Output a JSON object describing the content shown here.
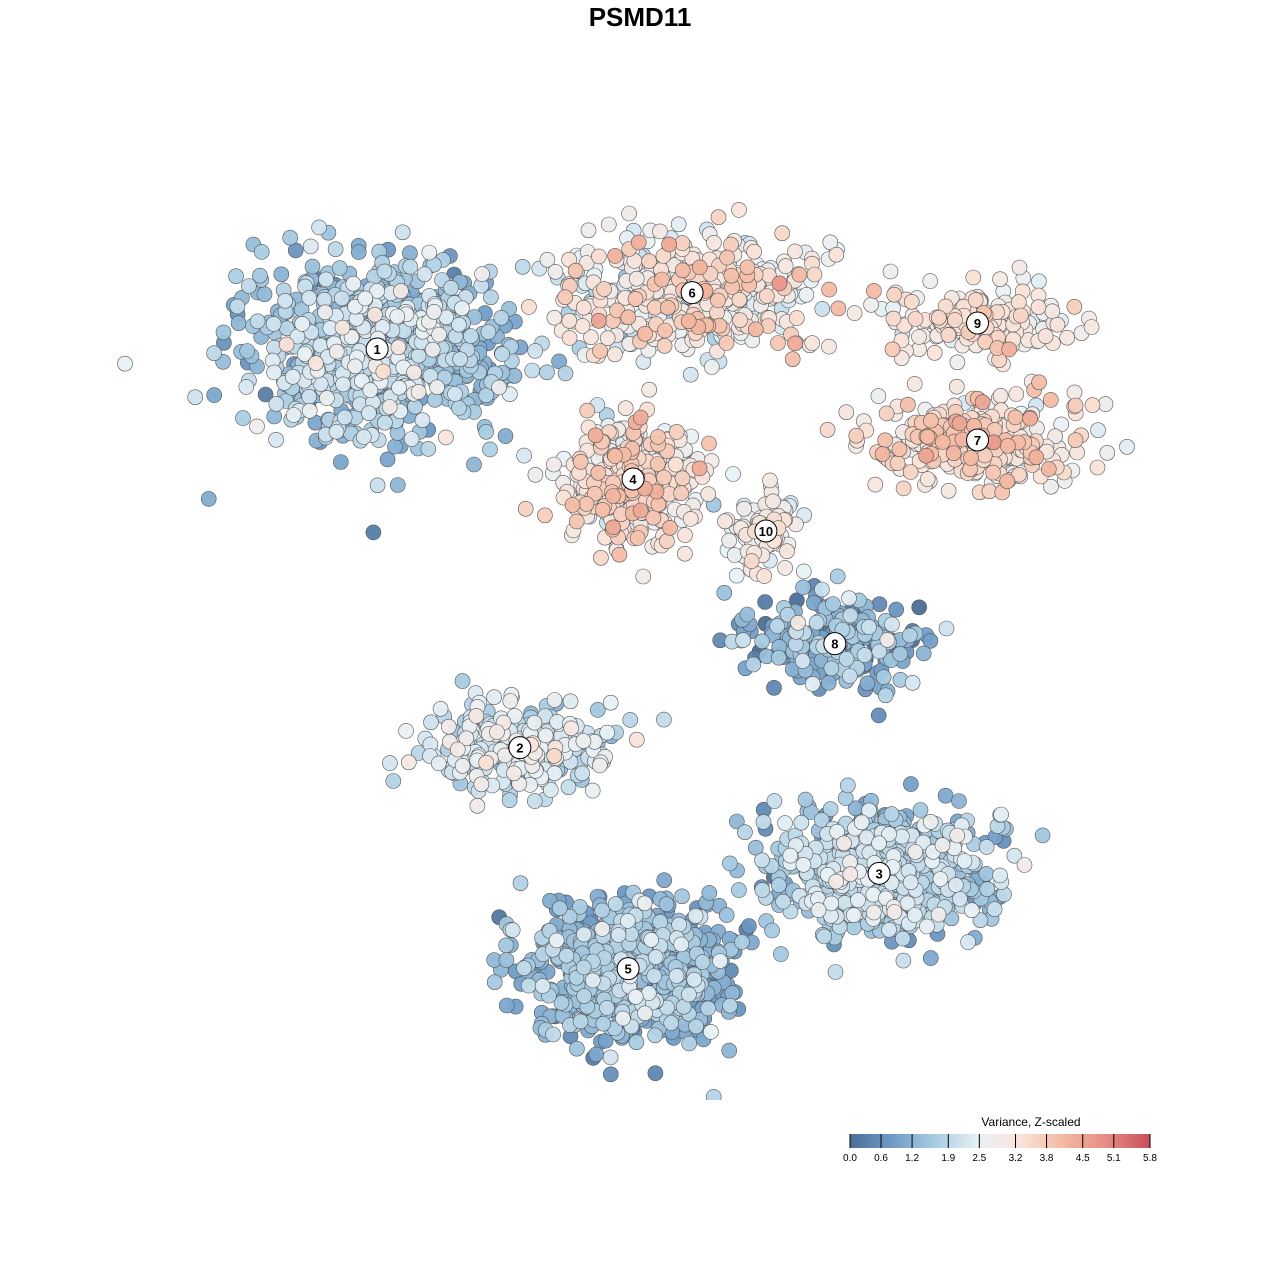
{
  "chart_data": {
    "type": "scatter",
    "title": "PSMD11",
    "description": "t-SNE style embedding of single cells colored by Z-scaled variance; 10 labeled clusters",
    "colorbar": {
      "title": "Variance, Z-scaled",
      "ticks": [
        0.0,
        0.6,
        1.2,
        1.9,
        2.5,
        3.2,
        3.8,
        4.5,
        5.1,
        5.8
      ],
      "tick_labels": [
        "0.0",
        "0.6",
        "1.2",
        "1.9",
        "2.5",
        "3.2",
        "3.8",
        "4.5",
        "5.1",
        "5.8"
      ],
      "range": [
        0.0,
        5.8
      ],
      "colors": [
        "#4b6f97",
        "#6f9cc8",
        "#a9cde3",
        "#e8f1f6",
        "#fae3d8",
        "#f3b8a0",
        "#e58b82",
        "#c94f5b"
      ]
    },
    "legend_placement": "bottom-right",
    "grid": false,
    "axes_visible": false,
    "clusters": [
      {
        "label": "1",
        "x": -27.0,
        "y": 25.5,
        "spread_x": 11.5,
        "spread_y": 9.0,
        "n": 900,
        "mean_value": 1.6,
        "value_sd": 0.55
      },
      {
        "label": "2",
        "x": -12.5,
        "y": -20.5,
        "spread_x": 8.0,
        "spread_y": 5.0,
        "n": 280,
        "mean_value": 2.2,
        "value_sd": 0.45
      },
      {
        "label": "3",
        "x": 24.0,
        "y": -35.0,
        "spread_x": 10.0,
        "spread_y": 6.5,
        "n": 700,
        "mean_value": 1.6,
        "value_sd": 0.5
      },
      {
        "label": "4",
        "x": -1.0,
        "y": 10.5,
        "spread_x": 6.0,
        "spread_y": 6.5,
        "n": 380,
        "mean_value": 3.1,
        "value_sd": 0.55
      },
      {
        "label": "5",
        "x": -1.5,
        "y": -46.0,
        "spread_x": 9.0,
        "spread_y": 7.0,
        "n": 800,
        "mean_value": 1.3,
        "value_sd": 0.45
      },
      {
        "label": "6",
        "x": 5.0,
        "y": 32.0,
        "spread_x": 12.0,
        "spread_y": 6.0,
        "n": 450,
        "mean_value": 2.9,
        "value_sd": 0.6
      },
      {
        "label": "7",
        "x": 34.0,
        "y": 15.0,
        "spread_x": 10.0,
        "spread_y": 4.5,
        "n": 300,
        "mean_value": 3.3,
        "value_sd": 0.5
      },
      {
        "label": "8",
        "x": 19.5,
        "y": -8.5,
        "spread_x": 8.0,
        "spread_y": 4.5,
        "n": 250,
        "mean_value": 1.1,
        "value_sd": 0.6
      },
      {
        "label": "9",
        "x": 34.0,
        "y": 28.5,
        "spread_x": 7.5,
        "spread_y": 3.5,
        "n": 200,
        "mean_value": 3.0,
        "value_sd": 0.4
      },
      {
        "label": "10",
        "x": 12.5,
        "y": 4.5,
        "spread_x": 3.0,
        "spread_y": 4.0,
        "n": 90,
        "mean_value": 2.8,
        "value_sd": 0.35
      }
    ],
    "xlim": [
      -45.0,
      50.0
    ],
    "ylim": [
      -60.0,
      45.0
    ]
  }
}
